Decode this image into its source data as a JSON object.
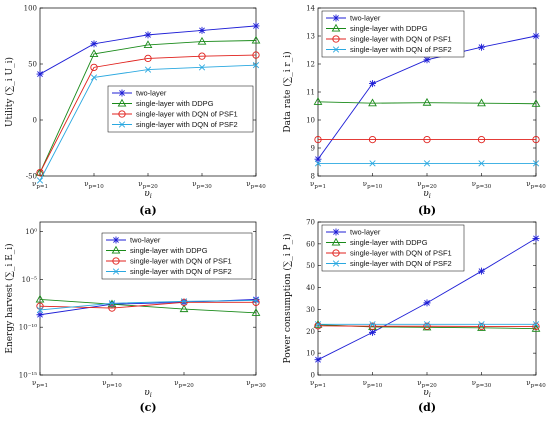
{
  "chart_data": [
    {
      "type": "line",
      "panel_label": "(a)",
      "categories": [
        "ν_{p=1}",
        "ν_{p=10}",
        "ν_{p=20}",
        "ν_{p=30}",
        "ν_{p=40}"
      ],
      "xlabel": "υ_i",
      "ylabel": "Utility (∑_i U_i)",
      "ylim": [
        -50,
        100
      ],
      "yticks": [
        -50,
        0,
        50,
        100
      ],
      "yscale": "linear",
      "legend_position": "bottom-right",
      "series": [
        {
          "name": "two-layer",
          "values": [
            41,
            68,
            76,
            80,
            84
          ]
        },
        {
          "name": "single-layer with DDPG",
          "values": [
            -47,
            59,
            67,
            70,
            71
          ]
        },
        {
          "name": "single-layer with DQN of PSF1",
          "values": [
            -47,
            47,
            55,
            57,
            58
          ]
        },
        {
          "name": "single-layer with DQN of PSF2",
          "values": [
            -54,
            38,
            45,
            47,
            49
          ]
        }
      ]
    },
    {
      "type": "line",
      "panel_label": "(b)",
      "categories": [
        "ν_{p=1}",
        "ν_{p=10}",
        "ν_{p=20}",
        "ν_{p=30}",
        "ν_{p=40}"
      ],
      "xlabel": "υ_i",
      "ylabel": "Data rate (∑_i r_i)",
      "ylim": [
        8,
        14
      ],
      "yticks": [
        8,
        9,
        10,
        11,
        12,
        13,
        14
      ],
      "yscale": "linear",
      "legend_position": "top-left",
      "series": [
        {
          "name": "two-layer",
          "values": [
            8.6,
            11.3,
            12.15,
            12.6,
            13.0
          ]
        },
        {
          "name": "single-layer with DDPG",
          "values": [
            10.65,
            10.6,
            10.62,
            10.6,
            10.58
          ]
        },
        {
          "name": "single-layer with DQN of PSF1",
          "values": [
            9.3,
            9.3,
            9.3,
            9.3,
            9.3
          ]
        },
        {
          "name": "single-layer with DQN of PSF2",
          "values": [
            8.45,
            8.45,
            8.45,
            8.45,
            8.45
          ]
        }
      ]
    },
    {
      "type": "line",
      "panel_label": "(c)",
      "categories": [
        "ν_{p=1}",
        "ν_{p=10}",
        "ν_{p=20}",
        "ν_{p=30}"
      ],
      "xlabel": "υ_i",
      "ylabel": "Energy harvest (∑_i E_i)",
      "ylim": [
        -15,
        1
      ],
      "yscale": "log10",
      "yticks": [
        -15,
        -10,
        -5,
        0
      ],
      "ytick_labels": [
        "10⁻¹⁵",
        "10⁻¹⁰",
        "10⁻⁵",
        "10⁰"
      ],
      "legend_position": "top-right",
      "series": [
        {
          "name": "two-layer",
          "values_log10": [
            -8.7,
            -7.6,
            -7.4,
            -7.1
          ]
        },
        {
          "name": "single-layer with DDPG",
          "values_log10": [
            -7.1,
            -7.6,
            -8.1,
            -8.5
          ]
        },
        {
          "name": "single-layer with DQN of PSF1",
          "values_log10": [
            -7.8,
            -8.0,
            -7.4,
            -7.4
          ]
        },
        {
          "name": "single-layer with DQN of PSF2",
          "values_log10": [
            -8.2,
            -7.5,
            -7.3,
            -7.2
          ]
        }
      ]
    },
    {
      "type": "line",
      "panel_label": "(d)",
      "categories": [
        "ν_{p=1}",
        "ν_{p=10}",
        "ν_{p=20}",
        "ν_{p=30}",
        "ν_{p=40}"
      ],
      "xlabel": "υ_i",
      "ylabel": "Power consumption (∑_i P_i)",
      "ylim": [
        0,
        70
      ],
      "yticks": [
        0,
        10,
        20,
        30,
        40,
        50,
        60,
        70
      ],
      "yscale": "linear",
      "legend_position": "top-left",
      "series": [
        {
          "name": "two-layer",
          "values": [
            7,
            19.5,
            33,
            47.5,
            62.5
          ]
        },
        {
          "name": "single-layer with DDPG",
          "values": [
            23,
            22,
            21.8,
            21.6,
            21.2
          ]
        },
        {
          "name": "single-layer with DQN of PSF1",
          "values": [
            22.5,
            22.3,
            22.3,
            22.2,
            22.2
          ]
        },
        {
          "name": "single-layer with DQN of PSF2",
          "values": [
            23.2,
            23.2,
            23.2,
            23.2,
            23.2
          ]
        }
      ]
    }
  ],
  "series_styles": [
    {
      "color": "#1f1fd6",
      "marker": "star"
    },
    {
      "color": "#1a8a1a",
      "marker": "triangle"
    },
    {
      "color": "#e0201c",
      "marker": "circle"
    },
    {
      "color": "#2aa8e0",
      "marker": "x"
    }
  ]
}
